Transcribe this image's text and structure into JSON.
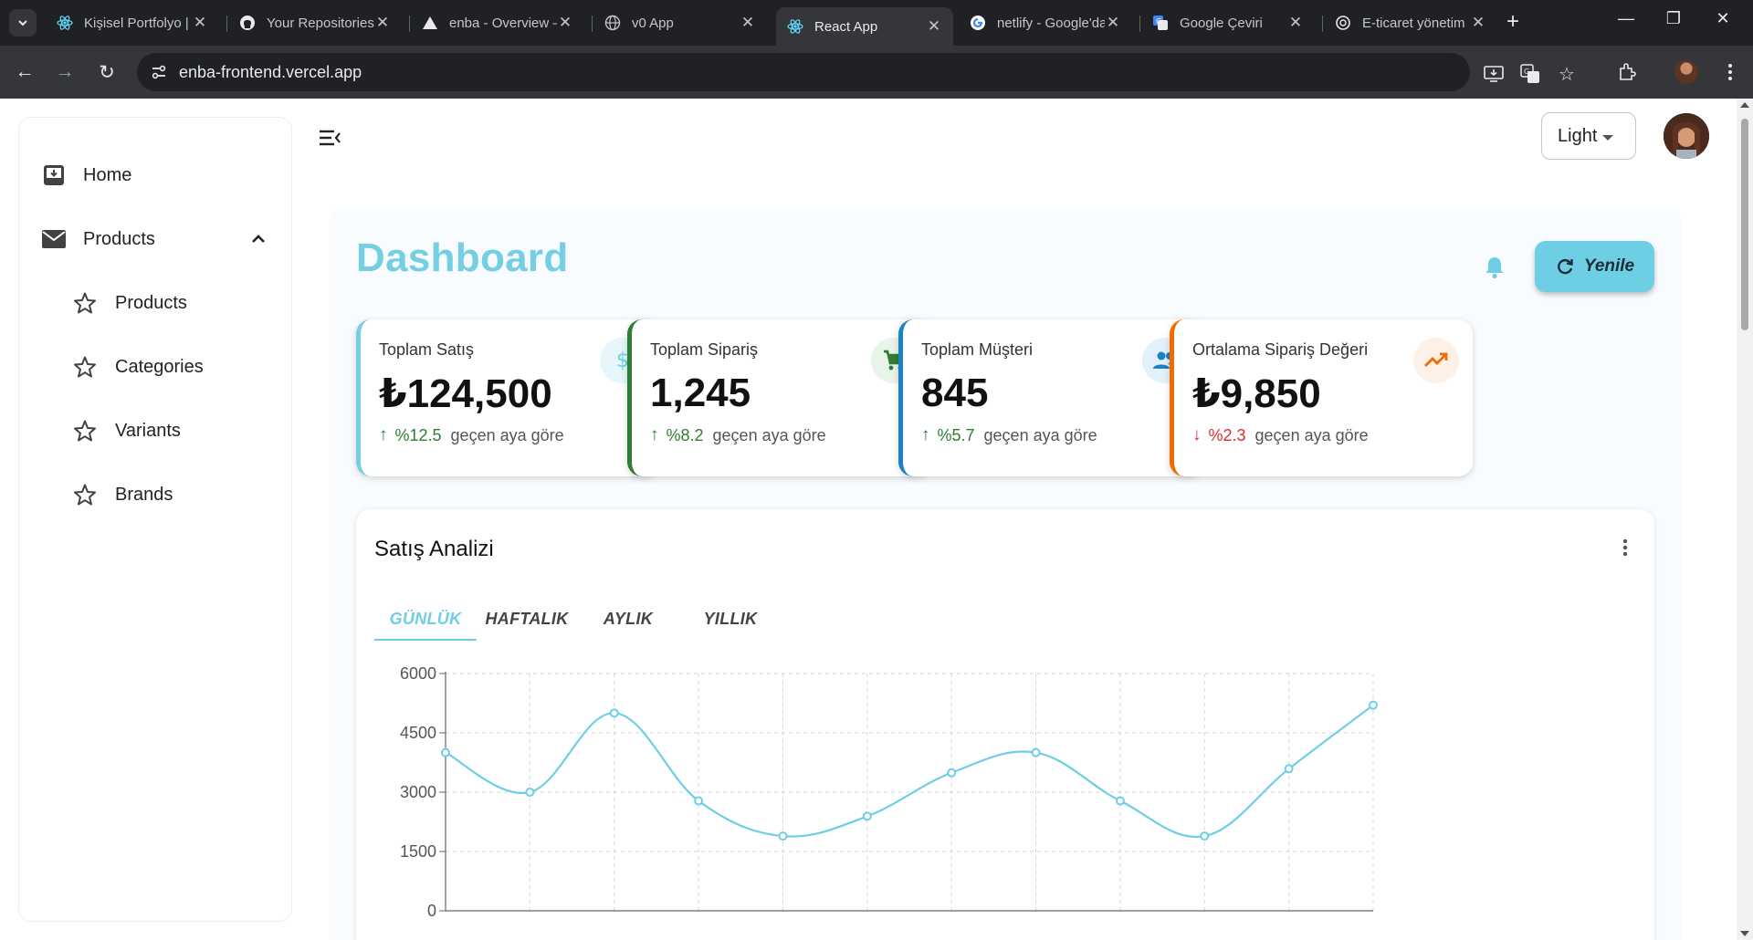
{
  "browser": {
    "tabs": [
      {
        "title": "Kişisel Portfolyo |",
        "icon": "react-icon"
      },
      {
        "title": "Your Repositories",
        "icon": "github-icon"
      },
      {
        "title": "enba - Overview –",
        "icon": "vercel-icon"
      },
      {
        "title": "v0 App",
        "icon": "globe-icon"
      },
      {
        "title": "React App",
        "icon": "react-icon"
      },
      {
        "title": "netlify - Google'da",
        "icon": "google-icon"
      },
      {
        "title": "Google Çeviri",
        "icon": "translate-icon"
      },
      {
        "title": "E-ticaret yönetim",
        "icon": "openai-icon"
      }
    ],
    "active_tab": 4,
    "url": "enba-frontend.vercel.app"
  },
  "sidebar": {
    "home": "Home",
    "products_group": "Products",
    "items": [
      {
        "label": "Products"
      },
      {
        "label": "Categories"
      },
      {
        "label": "Variants"
      },
      {
        "label": "Brands"
      }
    ]
  },
  "header": {
    "theme_value": "Light"
  },
  "dashboard": {
    "title": "Dashboard",
    "refresh_label": "Yenile",
    "stats": [
      {
        "label": "Toplam Satış",
        "value": "₺124,500",
        "change": "%12.5",
        "direction": "up",
        "compare": "geçen aya göre",
        "accent": "#74cfe3",
        "icon": "dollar-icon",
        "badge_bg": "#e6f6fa",
        "icon_color": "#74cfe3",
        "trend_color": "#2e7d32"
      },
      {
        "label": "Toplam Sipariş",
        "value": "1,245",
        "change": "%8.2",
        "direction": "up",
        "compare": "geçen aya göre",
        "accent": "#2e7d32",
        "icon": "cart-icon",
        "badge_bg": "#e8f3ea",
        "icon_color": "#2e7d32",
        "trend_color": "#2e7d32"
      },
      {
        "label": "Toplam Müşteri",
        "value": "845",
        "change": "%5.7",
        "direction": "up",
        "compare": "geçen aya göre",
        "accent": "#1a82c7",
        "icon": "people-icon",
        "badge_bg": "#e3f1fa",
        "icon_color": "#1a82c7",
        "trend_color": "#2e7d32"
      },
      {
        "label": "Ortalama Sipariş Değeri",
        "value": "₺9,850",
        "change": "%2.3",
        "direction": "down",
        "compare": "geçen aya göre",
        "accent": "#ef6c00",
        "icon": "trending-up-icon",
        "badge_bg": "#fdf0e6",
        "icon_color": "#ef6c00",
        "trend_color": "#d32f2f"
      }
    ],
    "analysis": {
      "title": "Satış Analizi",
      "tabs": [
        "GÜNLÜK",
        "HAFTALIK",
        "AYLIK",
        "YILLIK"
      ],
      "active_tab": 0
    }
  },
  "chart_data": {
    "type": "line",
    "title": "Satış Analizi",
    "xlabel": "",
    "ylabel": "",
    "ylim": [
      0,
      6000
    ],
    "yticks": [
      "0",
      "1500",
      "3000",
      "4500",
      "6000"
    ],
    "grid": true,
    "color": "#6ecfe4",
    "x": [
      0,
      1,
      2,
      3,
      4,
      5,
      6,
      7,
      8,
      9,
      10,
      11
    ],
    "series": [
      {
        "name": "Satış",
        "values": [
          4000,
          3000,
          5000,
          2780,
          1890,
          2390,
          3490,
          4000,
          2780,
          1890,
          3590,
          5200
        ]
      }
    ]
  }
}
